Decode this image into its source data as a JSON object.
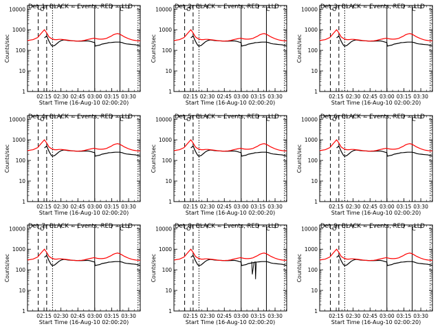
{
  "chart_data": [
    {
      "type": "line",
      "title": "Det_1r BLACK = Events, RED = LLD",
      "ylabel": "Counts/sec",
      "xlabel": "Start Time (16-Aug-10 02:00:20)"
    },
    {
      "type": "line",
      "title": "Det_2r BLACK = Events, RED = LLD",
      "ylabel": "Counts/sec",
      "xlabel": "Start Time (16-Aug-10 02:00:20)"
    },
    {
      "type": "line",
      "title": "Det_3r BLACK = Events, RED = LLD",
      "ylabel": "Counts/sec",
      "xlabel": "Start Time (16-Aug-10 02:00:20)"
    },
    {
      "type": "line",
      "title": "Det_4r BLACK = Events, RED = LLD",
      "ylabel": "Counts/sec",
      "xlabel": "Start Time (16-Aug-10 02:00:20)"
    },
    {
      "type": "line",
      "title": "Det_5r BLACK = Events, RED = LLD",
      "ylabel": "Counts/sec",
      "xlabel": "Start Time (16-Aug-10 02:00:20)"
    },
    {
      "type": "line",
      "title": "Det_6r BLACK = Events, RED = LLD",
      "ylabel": "Counts/sec",
      "xlabel": "Start Time (16-Aug-10 02:00:20)"
    },
    {
      "type": "line",
      "title": "Det_7r BLACK = Events, RED = LLD",
      "ylabel": "Counts/sec",
      "xlabel": "Start Time (16-Aug-10 02:00:20)"
    },
    {
      "type": "line",
      "title": "Det_8r BLACK = Events, RED = LLD",
      "ylabel": "Counts/sec",
      "xlabel": "Start Time (16-Aug-10 02:00:20)"
    },
    {
      "type": "line",
      "title": "Det_9r BLACK = Events, RED = LLD",
      "ylabel": "Counts/sec",
      "xlabel": "Start Time (16-Aug-10 02:00:20)"
    }
  ],
  "shared": {
    "x_range_min": [
      0,
      100
    ],
    "x_ticks": [
      "02:15",
      "02:30",
      "02:45",
      "03:00",
      "03:15",
      "03:30"
    ],
    "x_tick_minutes": [
      14.67,
      29.67,
      44.67,
      59.67,
      74.67,
      89.67
    ],
    "ylim_log": [
      1,
      15000
    ],
    "y_ticks": [
      "1",
      "10",
      "100",
      "1000",
      "10000"
    ],
    "y_tick_values": [
      1,
      10,
      100,
      1000,
      10000
    ],
    "markers": {
      "dashed_minutes": [
        9.5,
        17.0
      ],
      "dotted_minutes": [
        22.2,
        98.0
      ],
      "solid_minutes": [
        59.6,
        82.0
      ],
      "bracket_labels": [
        "O",
        "C"
      ]
    },
    "series": [
      {
        "name": "Events",
        "color": "#000000",
        "x": [
          0,
          5,
          9,
          11,
          13,
          15,
          17,
          19,
          21,
          22,
          24,
          26,
          28,
          30,
          32,
          34,
          36,
          38,
          40,
          42,
          44,
          46,
          48,
          50,
          52,
          54,
          56,
          58,
          59.5,
          60,
          62,
          64,
          66,
          68,
          70,
          72,
          74,
          76,
          78,
          80,
          82,
          84,
          86,
          88,
          90,
          92,
          94,
          96,
          98,
          100
        ],
        "y": [
          null,
          null,
          null,
          null,
          null,
          400,
          500,
          280,
          180,
          160,
          170,
          210,
          260,
          300,
          320,
          310,
          300,
          295,
          290,
          285,
          282,
          280,
          280,
          282,
          285,
          285,
          270,
          250,
          240,
          160,
          170,
          180,
          200,
          210,
          220,
          235,
          240,
          245,
          250,
          250,
          250,
          235,
          215,
          205,
          200,
          195,
          190,
          185,
          170,
          160
        ]
      },
      {
        "name": "LLD",
        "color": "#ff0000",
        "x": [
          0,
          5,
          9,
          11,
          13,
          15,
          17,
          19,
          21,
          22,
          24,
          26,
          28,
          30,
          32,
          34,
          36,
          38,
          40,
          42,
          44,
          46,
          48,
          50,
          52,
          54,
          56,
          58,
          59.5,
          60,
          62,
          64,
          66,
          68,
          70,
          72,
          74,
          76,
          78,
          80,
          82,
          84,
          86,
          88,
          90,
          92,
          94,
          96,
          98,
          100
        ],
        "y": [
          300,
          330,
          420,
          560,
          750,
          1000,
          700,
          450,
          380,
          360,
          330,
          330,
          340,
          340,
          330,
          320,
          310,
          300,
          290,
          285,
          280,
          285,
          290,
          300,
          320,
          340,
          360,
          380,
          390,
          380,
          360,
          350,
          350,
          360,
          380,
          430,
          480,
          560,
          620,
          650,
          600,
          520,
          450,
          400,
          360,
          330,
          310,
          300,
          290,
          290
        ]
      }
    ],
    "dips_panel_8": {
      "x": [
        69.0,
        69.5,
        71.0,
        72.0,
        72.4,
        73.0
      ],
      "y": [
        250,
        60,
        230,
        240,
        35,
        240
      ]
    }
  }
}
